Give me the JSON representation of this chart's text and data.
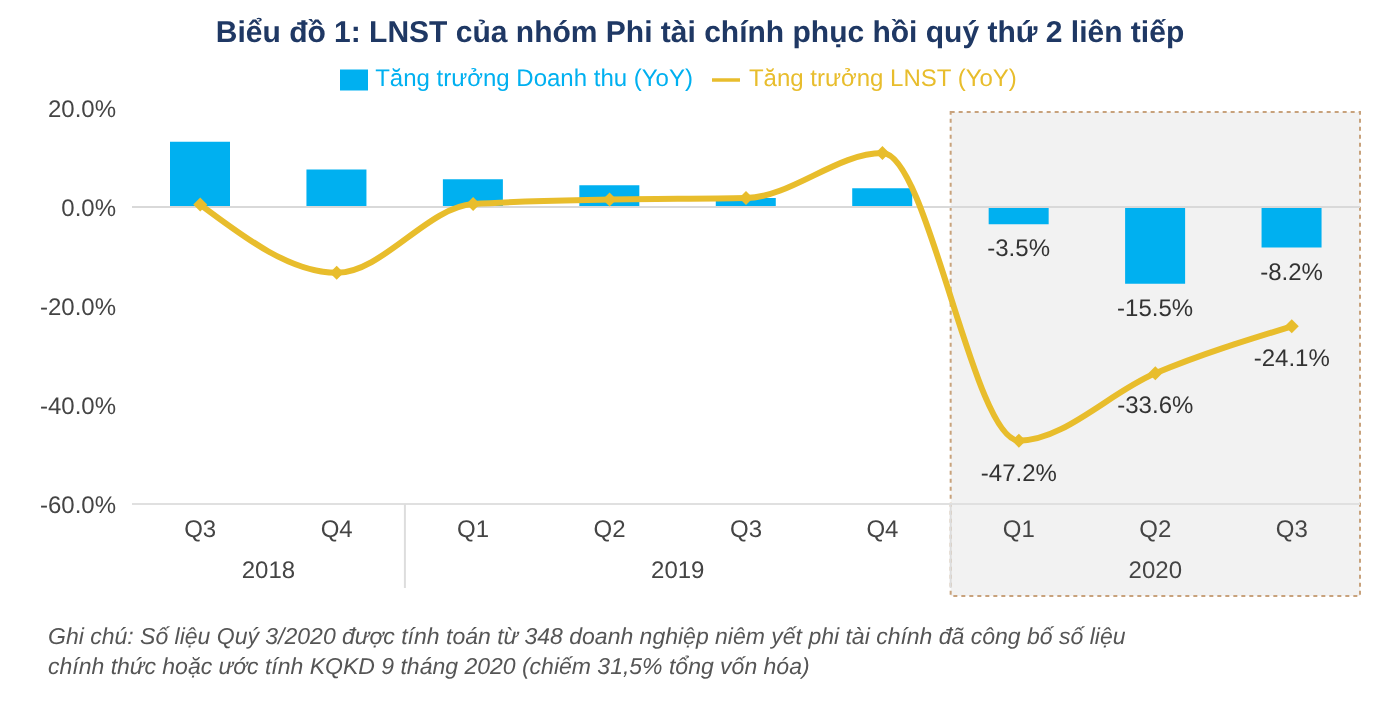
{
  "chart_data": {
    "type": "bar",
    "title": "Biểu đồ 1: LNST của nhóm Phi tài chính phục hồi quý thứ 2 liên tiếp",
    "categories": [
      "Q3",
      "Q4",
      "Q1",
      "Q2",
      "Q3",
      "Q4",
      "Q1",
      "Q2",
      "Q3"
    ],
    "series": [
      {
        "name": "Tăng trưởng Doanh thu (YoY)",
        "color": "#00b0f0",
        "values": [
          13.2,
          7.6,
          5.6,
          4.4,
          1.8,
          3.8,
          -3.5,
          -15.5,
          -8.2
        ],
        "value_labels": [
          null,
          null,
          null,
          null,
          null,
          null,
          "-3.5%",
          "-15.5%",
          "-8.2%"
        ]
      },
      {
        "name": "Tăng trưởng LNST (YoY)",
        "type": "line",
        "color": "#e8bd2c",
        "values": [
          0.5,
          -13.3,
          0.6,
          1.5,
          1.8,
          10.9,
          -47.2,
          -33.6,
          -24.1
        ],
        "value_labels": [
          null,
          null,
          null,
          null,
          null,
          null,
          "-47.2%",
          "-33.6%",
          "-24.1%"
        ]
      }
    ],
    "ylim": [
      -60,
      20
    ],
    "yticks": [
      {
        "value": -60,
        "label": "-60.0%"
      },
      {
        "value": -40,
        "label": "-40.0%"
      },
      {
        "value": -20,
        "label": "-20.0%"
      },
      {
        "value": 0,
        "label": "0.0%"
      },
      {
        "value": 20,
        "label": "20.0%"
      }
    ],
    "ref_lines": [
      {
        "axis": "y",
        "value": 0,
        "color": "#d9d9d9"
      }
    ],
    "legend": "top",
    "marker": "diamond",
    "line_style": "solid",
    "annotations": [
      "2018",
      "2019",
      "2020",
      "Ghi chú: Số liệu Quý 3/2020 được tính toán từ 348 doanh nghiệp niêm yết phi tài chính đã công bố số liệu chính thức hoặc ước tính KQKD 9 tháng 2020 (chiếm 31,5% tổng vốn hóa)"
    ]
  }
}
